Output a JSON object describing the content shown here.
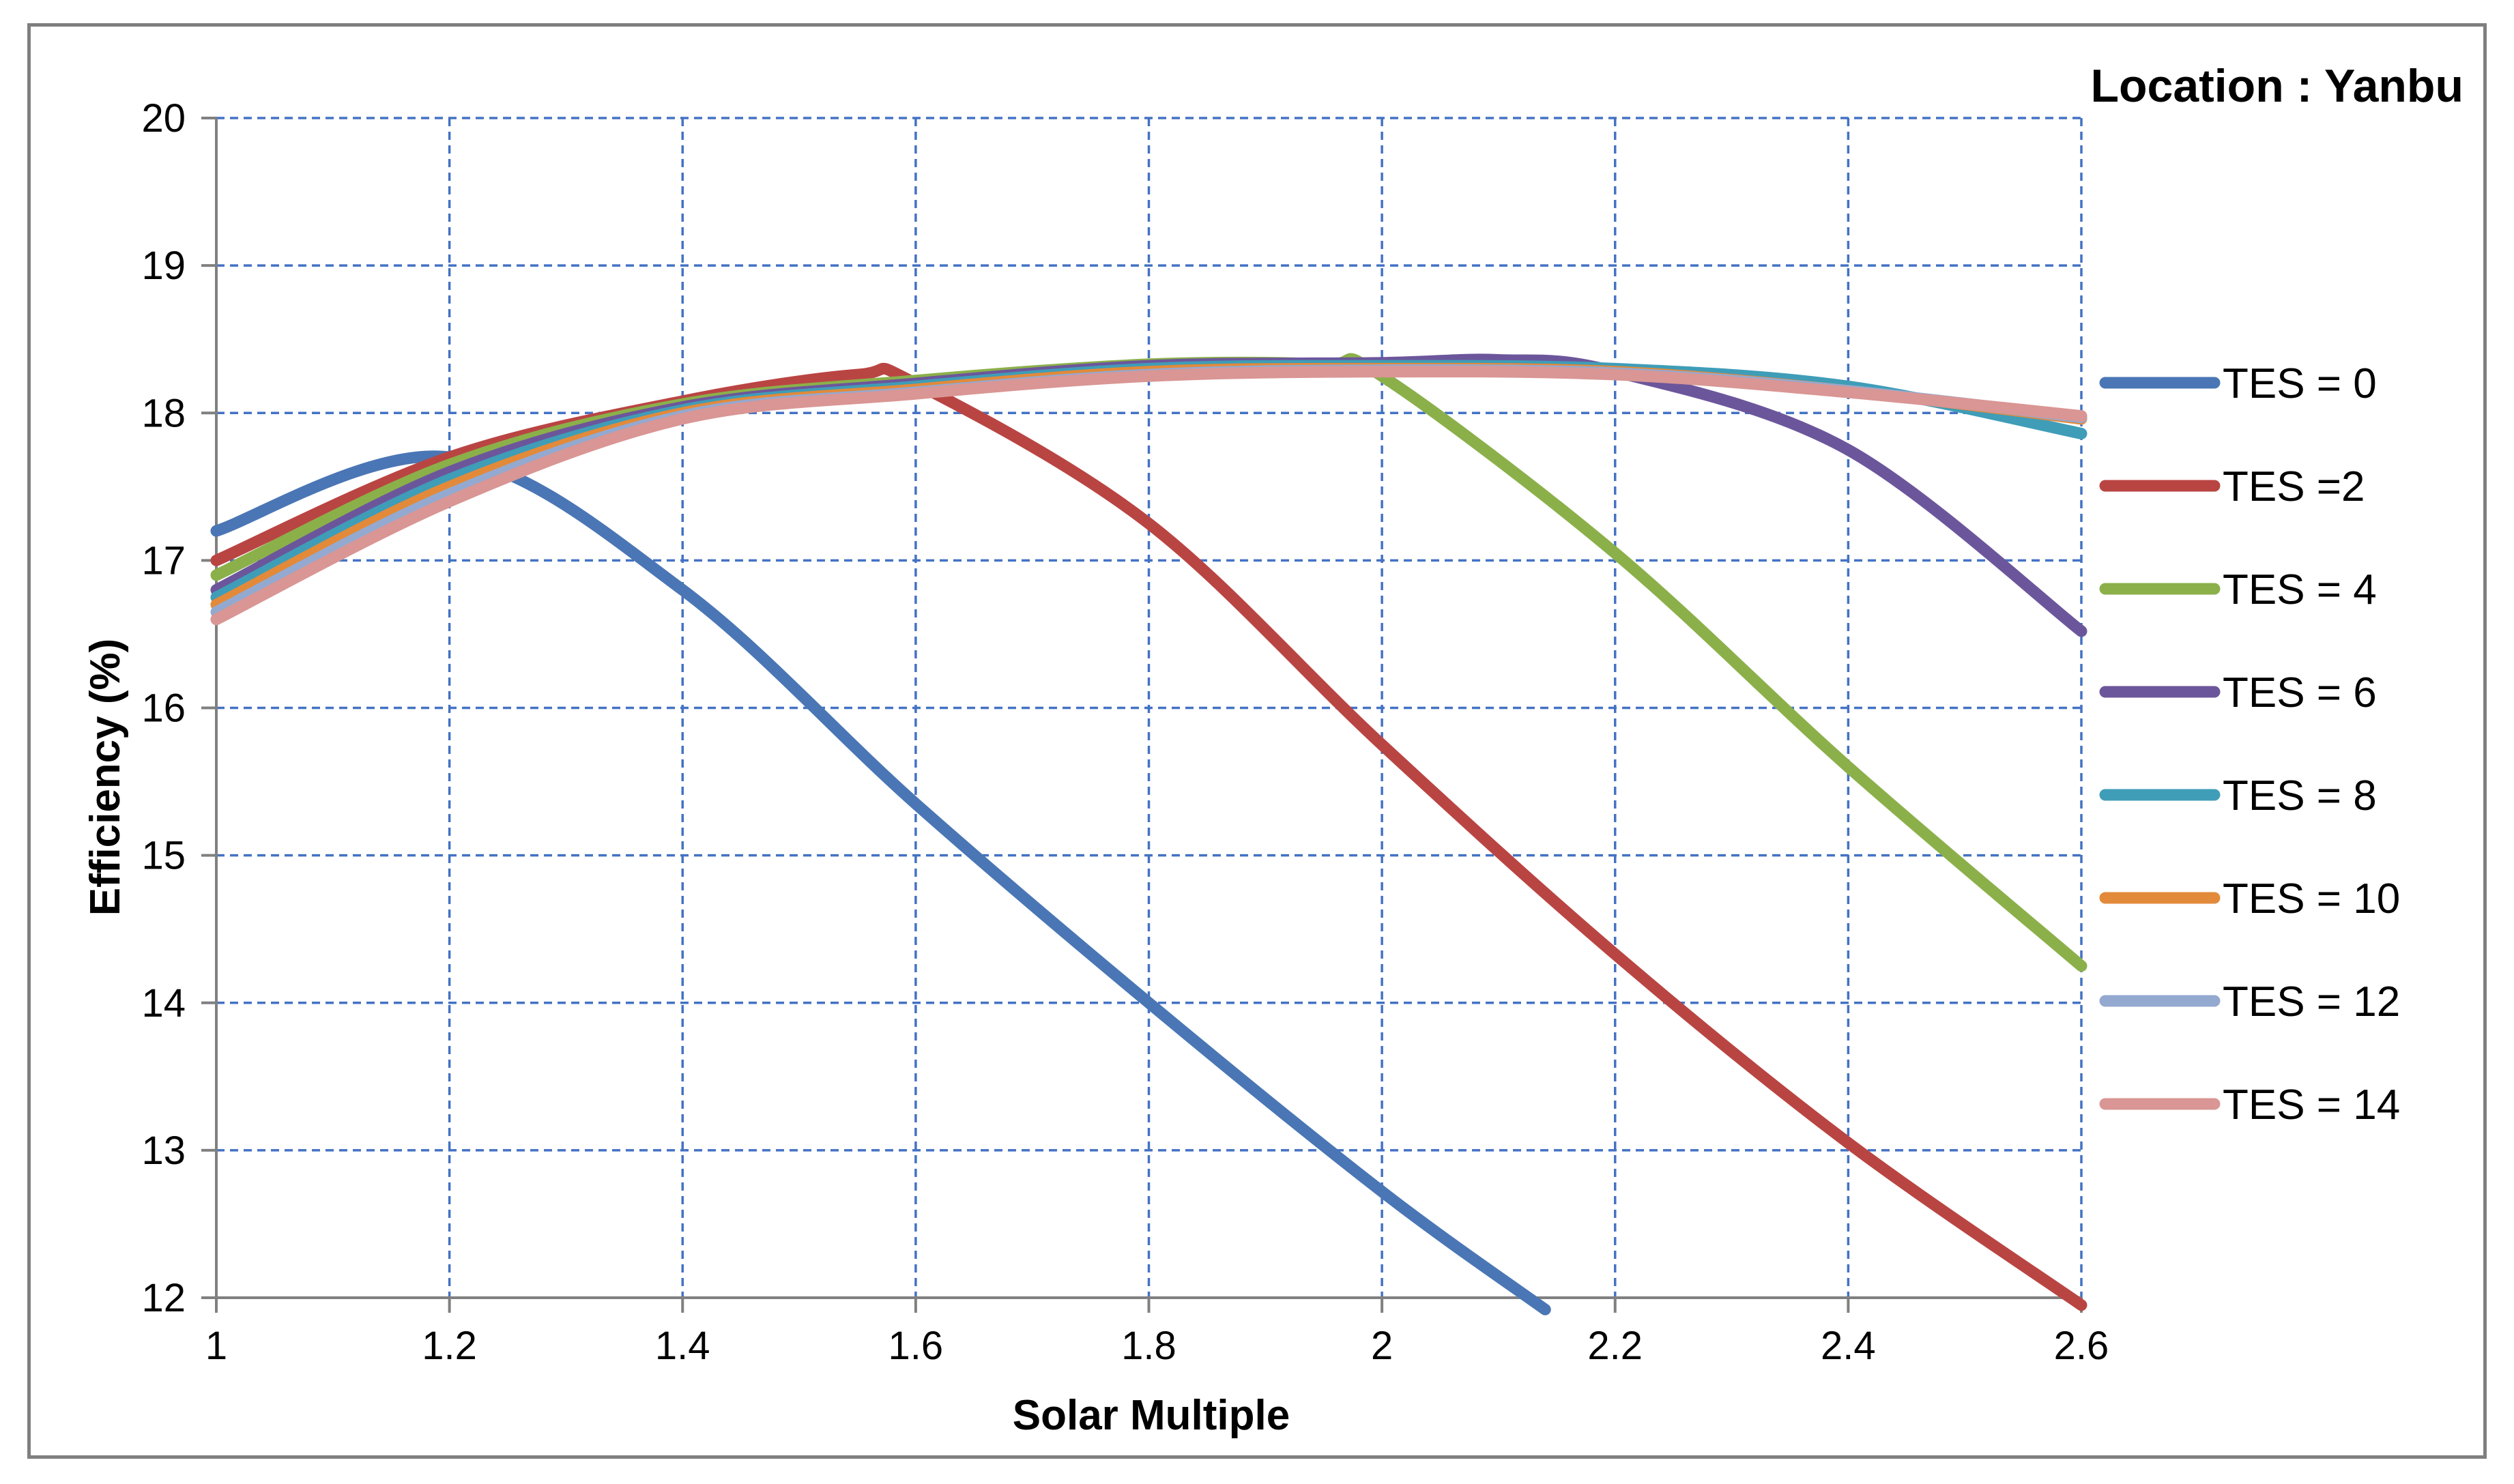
{
  "chart_data": {
    "type": "line",
    "title": "Location : Yanbu",
    "xlabel": "Solar Multiple",
    "ylabel": "Efficiency (%)",
    "xlim": [
      1,
      2.6
    ],
    "ylim": [
      12,
      20
    ],
    "xticks": [
      1,
      1.2,
      1.4,
      1.6,
      1.8,
      2,
      2.2,
      2.4,
      2.6
    ],
    "xtick_labels": [
      "1",
      "1.2",
      "1.4",
      "1.6",
      "1.8",
      "2",
      "2.2",
      "2.4",
      "2.6"
    ],
    "yticks": [
      12,
      13,
      14,
      15,
      16,
      17,
      18,
      19,
      20
    ],
    "ytick_labels": [
      "12",
      "13",
      "14",
      "15",
      "16",
      "17",
      "18",
      "19",
      "20"
    ],
    "grid": true,
    "legend_position": "right",
    "x": [
      1,
      1.2,
      1.4,
      1.6,
      1.8,
      2,
      2.2,
      2.4,
      2.6
    ],
    "series": [
      {
        "name": "TES = 0",
        "color": "#4a76b5",
        "x": [
          1,
          1.2,
          1.4,
          1.6,
          1.8,
          2,
          2.14
        ],
        "values": [
          17.2,
          17.7,
          16.8,
          15.35,
          14.0,
          12.72,
          11.92
        ]
      },
      {
        "name": "TES =2",
        "color": "#b94543",
        "x": [
          1,
          1.2,
          1.4,
          1.55,
          1.6,
          1.8,
          2,
          2.2,
          2.4,
          2.6
        ],
        "values": [
          17.0,
          17.7,
          18.08,
          18.26,
          18.2,
          17.25,
          15.75,
          14.33,
          13.05,
          11.95
        ]
      },
      {
        "name": "TES = 4",
        "color": "#8bb04a",
        "x": [
          1,
          1.2,
          1.4,
          1.6,
          1.8,
          1.95,
          2,
          2.2,
          2.4,
          2.6
        ],
        "values": [
          16.9,
          17.65,
          18.06,
          18.22,
          18.33,
          18.33,
          18.25,
          17.05,
          15.6,
          14.25
        ]
      },
      {
        "name": "TES = 6",
        "color": "#6c569b",
        "x": [
          1,
          1.2,
          1.4,
          1.6,
          1.8,
          2,
          2.1,
          2.2,
          2.4,
          2.6
        ],
        "values": [
          16.8,
          17.6,
          18.04,
          18.2,
          18.32,
          18.34,
          18.36,
          18.28,
          17.75,
          16.52
        ]
      },
      {
        "name": "TES = 8",
        "color": "#3f9db8",
        "x": [
          1,
          1.2,
          1.4,
          1.6,
          1.8,
          2,
          2.2,
          2.4,
          2.6
        ],
        "values": [
          16.75,
          17.55,
          18.02,
          18.18,
          18.3,
          18.32,
          18.3,
          18.18,
          17.86
        ]
      },
      {
        "name": "TES = 10",
        "color": "#e28a3a",
        "x": [
          1,
          1.2,
          1.4,
          1.6,
          1.8,
          2,
          2.2,
          2.4,
          2.6
        ],
        "values": [
          16.7,
          17.5,
          18.0,
          18.16,
          18.28,
          18.3,
          18.28,
          18.15,
          17.96
        ]
      },
      {
        "name": "TES = 12",
        "color": "#94a9d0",
        "x": [
          1,
          1.2,
          1.4,
          1.6,
          1.8,
          2,
          2.2,
          2.4,
          2.6
        ],
        "values": [
          16.65,
          17.45,
          17.98,
          18.14,
          18.26,
          18.29,
          18.27,
          18.15,
          17.97
        ]
      },
      {
        "name": "TES = 14",
        "color": "#d99694",
        "x": [
          1,
          1.2,
          1.4,
          1.6,
          1.8,
          2,
          2.2,
          2.4,
          2.6
        ],
        "values": [
          16.6,
          17.4,
          17.96,
          18.13,
          18.25,
          18.28,
          18.26,
          18.14,
          17.98
        ]
      }
    ]
  }
}
